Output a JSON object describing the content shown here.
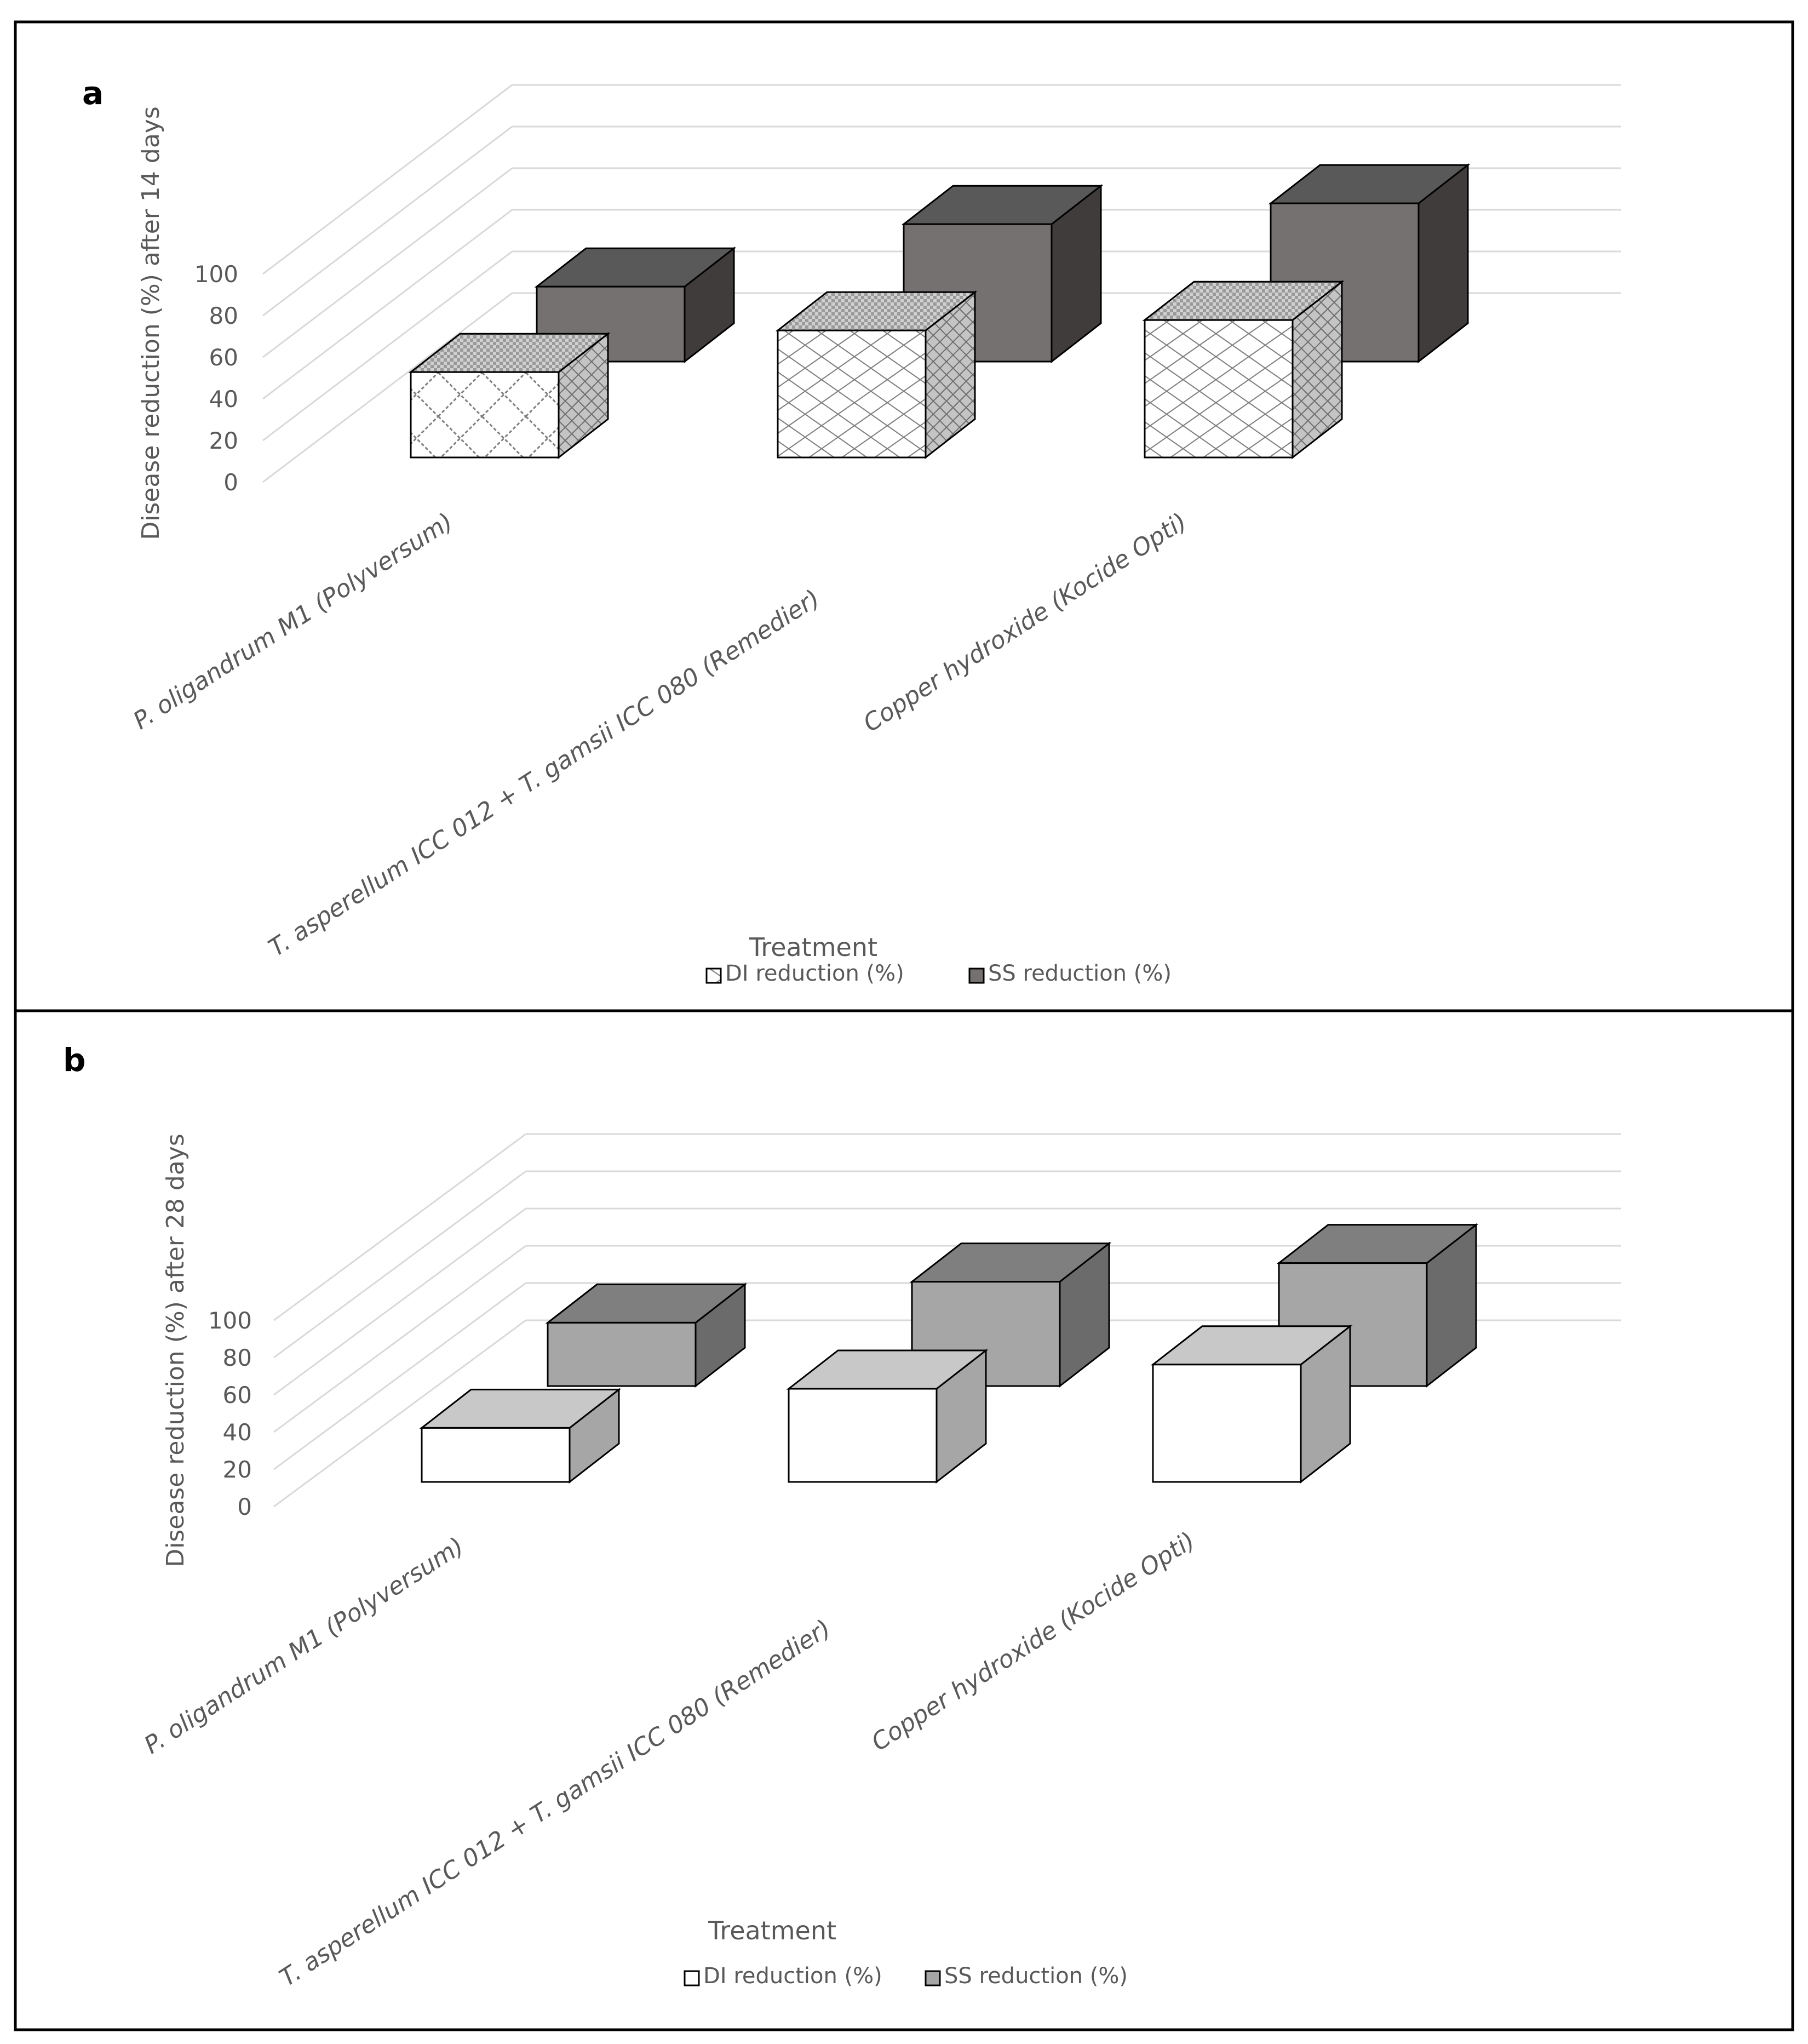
{
  "chart_data": [
    {
      "panel_label": "a",
      "type": "bar",
      "style": "3d-clustered-column",
      "categories": [
        "P. oligandrum M1 (Polyversum)",
        "T. asperellum ICC 012 + T. gamsii ICC 080 (Remedier)",
        "Copper hydroxide (Kocide Opti)"
      ],
      "series": [
        {
          "name": "DI reduction (%)",
          "values": [
            41,
            61,
            66
          ],
          "fill": "hatched"
        },
        {
          "name": "SS reduction (%)",
          "values": [
            36,
            66,
            76
          ],
          "fill": "dark"
        }
      ],
      "xlabel": "Treatment",
      "ylabel": "Disease reduction (%) after 14 days",
      "yticks": [
        "0",
        "20",
        "40",
        "60",
        "80",
        "100"
      ],
      "ylim": [
        0,
        100
      ],
      "grid": true,
      "legend": "bottom"
    },
    {
      "panel_label": "b",
      "type": "bar",
      "style": "3d-clustered-column",
      "categories": [
        "P. oligandrum M1 (Polyversum)",
        "T. asperellum ICC 012 + T. gamsii ICC 080 (Remedier)",
        "Copper hydroxide (Kocide Opti)"
      ],
      "series": [
        {
          "name": "DI reduction (%)",
          "values": [
            29,
            50,
            63
          ],
          "fill": "white"
        },
        {
          "name": "SS reduction (%)",
          "values": [
            34,
            56,
            66
          ],
          "fill": "grey"
        }
      ],
      "xlabel": "Treatment",
      "ylabel": "Disease reduction (%) after 28 days",
      "yticks": [
        "0",
        "20",
        "40",
        "60",
        "80",
        "100"
      ],
      "ylim": [
        0,
        100
      ],
      "grid": true,
      "legend": "bottom"
    }
  ],
  "colors": {
    "frame": "#000000",
    "grid": "#d9d9d9",
    "text": "#595959",
    "panel_a_ss": {
      "front": "#767171",
      "top": "#595959",
      "side": "#403c3c"
    },
    "panel_a_di": {
      "front": "#ffffff",
      "top": "#bfbfbf",
      "side": "#a6a6a6",
      "pattern": "#7f7f7f"
    },
    "panel_b_ss": {
      "front": "#a6a6a6",
      "top": "#7f7f7f",
      "side": "#6b6b6b"
    },
    "panel_b_di": {
      "front": "#ffffff",
      "top": "#c8c8c8",
      "side": "#a6a6a6"
    }
  }
}
